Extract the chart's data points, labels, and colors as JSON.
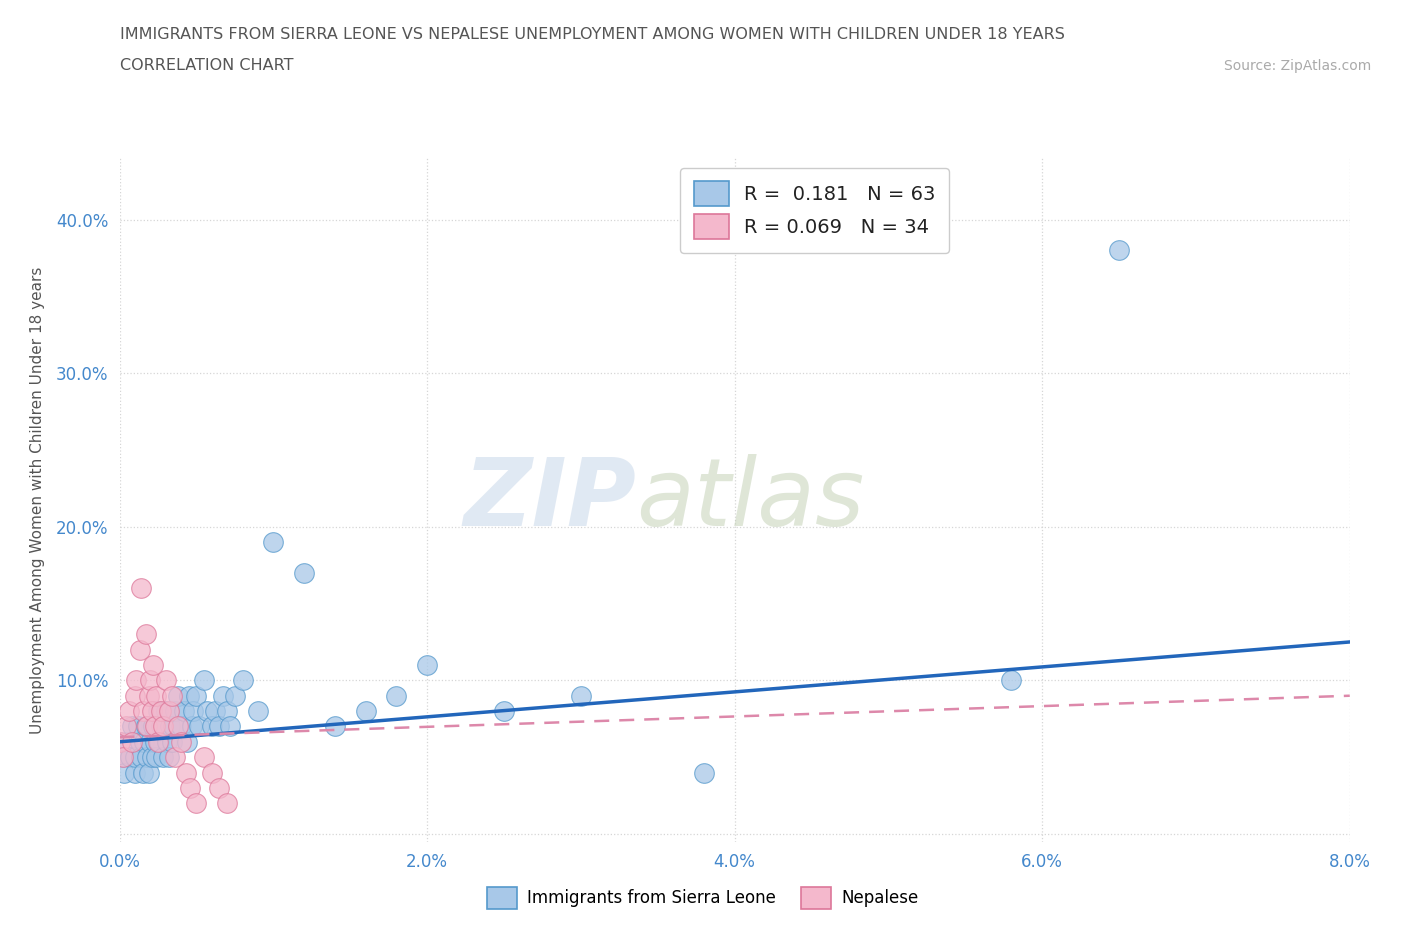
{
  "title_line1": "IMMIGRANTS FROM SIERRA LEONE VS NEPALESE UNEMPLOYMENT AMONG WOMEN WITH CHILDREN UNDER 18 YEARS",
  "title_line2": "CORRELATION CHART",
  "source_text": "Source: ZipAtlas.com",
  "ylabel": "Unemployment Among Women with Children Under 18 years",
  "xlim": [
    0.0,
    0.08
  ],
  "ylim": [
    -0.005,
    0.44
  ],
  "xticks": [
    0.0,
    0.02,
    0.04,
    0.06,
    0.08
  ],
  "yticks": [
    0.0,
    0.1,
    0.2,
    0.3,
    0.4
  ],
  "xtick_labels": [
    "0.0%",
    "2.0%",
    "4.0%",
    "6.0%",
    "8.0%"
  ],
  "ytick_labels": [
    "",
    "10.0%",
    "20.0%",
    "30.0%",
    "40.0%"
  ],
  "legend_r1": "R =  0.181   N = 63",
  "legend_r2": "R = 0.069   N = 34",
  "color_blue": "#a8c8e8",
  "color_pink": "#f4b8cc",
  "color_blue_edge": "#5599cc",
  "color_pink_edge": "#dd7799",
  "color_trendline_blue": "#2266bb",
  "color_trendline_pink": "#dd88aa",
  "watermark_zip": "ZIP",
  "watermark_atlas": "atlas",
  "series1_label": "Immigrants from Sierra Leone",
  "series2_label": "Nepalese",
  "series1_x": [
    0.0,
    0.0002,
    0.0003,
    0.0005,
    0.0007,
    0.0008,
    0.001,
    0.001,
    0.0012,
    0.0013,
    0.0014,
    0.0015,
    0.0016,
    0.0017,
    0.0018,
    0.0019,
    0.002,
    0.0021,
    0.0022,
    0.0023,
    0.0024,
    0.0025,
    0.0026,
    0.0027,
    0.0028,
    0.003,
    0.0031,
    0.0032,
    0.0033,
    0.0034,
    0.0035,
    0.0036,
    0.0038,
    0.004,
    0.0042,
    0.0044,
    0.0045,
    0.0047,
    0.0048,
    0.005,
    0.0052,
    0.0055,
    0.0057,
    0.006,
    0.0062,
    0.0065,
    0.0067,
    0.007,
    0.0072,
    0.0075,
    0.008,
    0.009,
    0.01,
    0.012,
    0.014,
    0.016,
    0.018,
    0.02,
    0.025,
    0.03,
    0.038,
    0.058,
    0.065
  ],
  "series1_y": [
    0.06,
    0.05,
    0.04,
    0.06,
    0.05,
    0.07,
    0.04,
    0.05,
    0.07,
    0.06,
    0.05,
    0.04,
    0.06,
    0.07,
    0.05,
    0.04,
    0.06,
    0.05,
    0.07,
    0.06,
    0.05,
    0.08,
    0.06,
    0.07,
    0.05,
    0.08,
    0.06,
    0.05,
    0.07,
    0.06,
    0.07,
    0.08,
    0.09,
    0.07,
    0.08,
    0.06,
    0.09,
    0.07,
    0.08,
    0.09,
    0.07,
    0.1,
    0.08,
    0.07,
    0.08,
    0.07,
    0.09,
    0.08,
    0.07,
    0.09,
    0.1,
    0.08,
    0.19,
    0.17,
    0.07,
    0.08,
    0.09,
    0.11,
    0.08,
    0.09,
    0.04,
    0.1,
    0.38
  ],
  "series2_x": [
    0.0,
    0.0002,
    0.0004,
    0.0006,
    0.0008,
    0.001,
    0.0011,
    0.0013,
    0.0014,
    0.0015,
    0.0017,
    0.0018,
    0.0019,
    0.002,
    0.0021,
    0.0022,
    0.0023,
    0.0024,
    0.0025,
    0.0027,
    0.0028,
    0.003,
    0.0032,
    0.0034,
    0.0036,
    0.0038,
    0.004,
    0.0043,
    0.0046,
    0.005,
    0.0055,
    0.006,
    0.0065,
    0.007
  ],
  "series2_y": [
    0.06,
    0.05,
    0.07,
    0.08,
    0.06,
    0.09,
    0.1,
    0.12,
    0.16,
    0.08,
    0.13,
    0.07,
    0.09,
    0.1,
    0.08,
    0.11,
    0.07,
    0.09,
    0.06,
    0.08,
    0.07,
    0.1,
    0.08,
    0.09,
    0.05,
    0.07,
    0.06,
    0.04,
    0.03,
    0.02,
    0.05,
    0.04,
    0.03,
    0.02
  ],
  "trendline1_x": [
    0.0,
    0.08
  ],
  "trendline1_y": [
    0.06,
    0.125
  ],
  "trendline2_x": [
    0.0,
    0.08
  ],
  "trendline2_y": [
    0.063,
    0.09
  ],
  "background_color": "#ffffff",
  "grid_color": "#cccccc",
  "title_color": "#666666",
  "axis_tick_color": "#4488cc"
}
